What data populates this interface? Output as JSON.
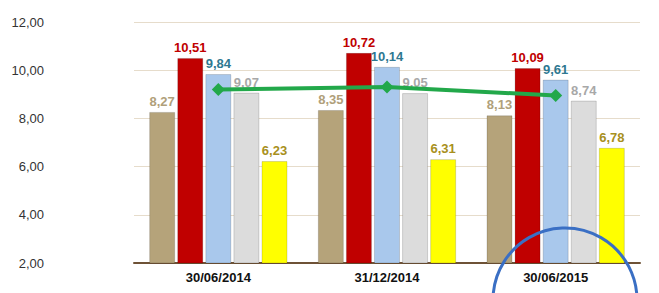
{
  "chart_data": {
    "type": "bar",
    "categories": [
      "30/06/2014",
      "31/12/2014",
      "30/06/2015"
    ],
    "ylim": [
      2,
      12
    ],
    "yticks": [
      {
        "value": 2,
        "label": "2,00"
      },
      {
        "value": 4,
        "label": "4,00"
      },
      {
        "value": 6,
        "label": "6,00"
      },
      {
        "value": 8,
        "label": "8,00"
      },
      {
        "value": 10,
        "label": "10,00"
      },
      {
        "value": 12,
        "label": "12,00"
      }
    ],
    "grid": true,
    "series": [
      {
        "type": "bar",
        "color": "#b5a37a",
        "data_labels": true,
        "values": [
          8.27,
          8.35,
          8.13
        ],
        "value_labels": [
          "8,27",
          "8,35",
          "8,13"
        ]
      },
      {
        "type": "bar",
        "color": "#c00000",
        "data_labels": true,
        "values": [
          10.51,
          10.72,
          10.09
        ],
        "value_labels": [
          "10,51",
          "10,72",
          "10,09"
        ]
      },
      {
        "type": "bar",
        "color": "#a9c8ec",
        "data_labels": true,
        "values": [
          9.84,
          10.14,
          9.61
        ],
        "value_labels": [
          "9,84",
          "10,14",
          "9,61"
        ]
      },
      {
        "type": "bar",
        "color": "#dcdcdc",
        "data_labels": true,
        "values": [
          9.07,
          9.05,
          8.74
        ],
        "value_labels": [
          "9,07",
          "9,05",
          "8,74"
        ]
      },
      {
        "type": "bar",
        "color": "#ffff00",
        "data_labels": true,
        "values": [
          6.23,
          6.31,
          6.78
        ],
        "value_labels": [
          "6,23",
          "6,31",
          "6,78"
        ]
      },
      {
        "type": "line",
        "color": "#22a84a",
        "marker": "diamond",
        "values": [
          9.2,
          9.3,
          8.95
        ]
      }
    ]
  }
}
